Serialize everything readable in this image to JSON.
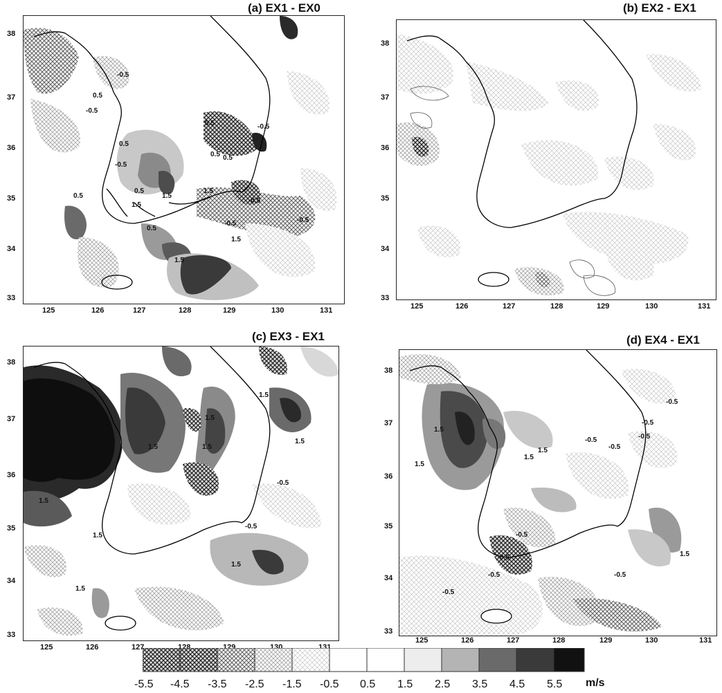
{
  "figure": {
    "panels": [
      {
        "id": "a",
        "title": "(a) EX1 - EX0",
        "labels": [
          "-0.5",
          "0.5",
          "-0.5",
          "0.5",
          "-0.5",
          "0.5",
          "0.5",
          "0.5",
          "-0.5",
          "0.5",
          "1.5",
          "1.5",
          "0.5",
          "1.5",
          "-0.5",
          "-0.5",
          "1.5",
          "1.5",
          "0.5",
          "-0.5"
        ]
      },
      {
        "id": "b",
        "title": "(b) EX2 - EX1",
        "labels": []
      },
      {
        "id": "c",
        "title": "(c) EX3 - EX1",
        "labels": [
          "1.5",
          "1.5",
          "1.5",
          "1.5",
          "1.5",
          "1.5",
          "-0.5",
          "-0.5",
          "1.5",
          "1.5",
          "1.5"
        ]
      },
      {
        "id": "d",
        "title": "(d) EX4 - EX1",
        "labels": [
          "-0.5",
          "-0.5",
          "1.5",
          "-0.5",
          "-0.5",
          "1.5",
          "1.5",
          "-0.5",
          "-0.5",
          "0.5",
          "-0.5",
          "-0.5",
          "1.5",
          "-0.5",
          "1.5"
        ]
      }
    ],
    "y_ticks": [
      "38",
      "37",
      "36",
      "35",
      "34",
      "33"
    ],
    "x_ticks": [
      "125",
      "126",
      "127",
      "128",
      "129",
      "130",
      "131"
    ]
  },
  "legend": {
    "ticks": [
      "-5.5",
      "-4.5",
      "-3.5",
      "-2.5",
      "-1.5",
      "-0.5",
      "0.5",
      "1.5",
      "2.5",
      "3.5",
      "4.5",
      "5.5"
    ],
    "unit": "m/s"
  },
  "colors": {
    "pos_light": "#e4e4e4",
    "pos_mid": "#bdbdbd",
    "pos_dark": "#7a7a7a",
    "pos_darker": "#444444",
    "pos_black": "#111111",
    "hatch": "#222222"
  }
}
